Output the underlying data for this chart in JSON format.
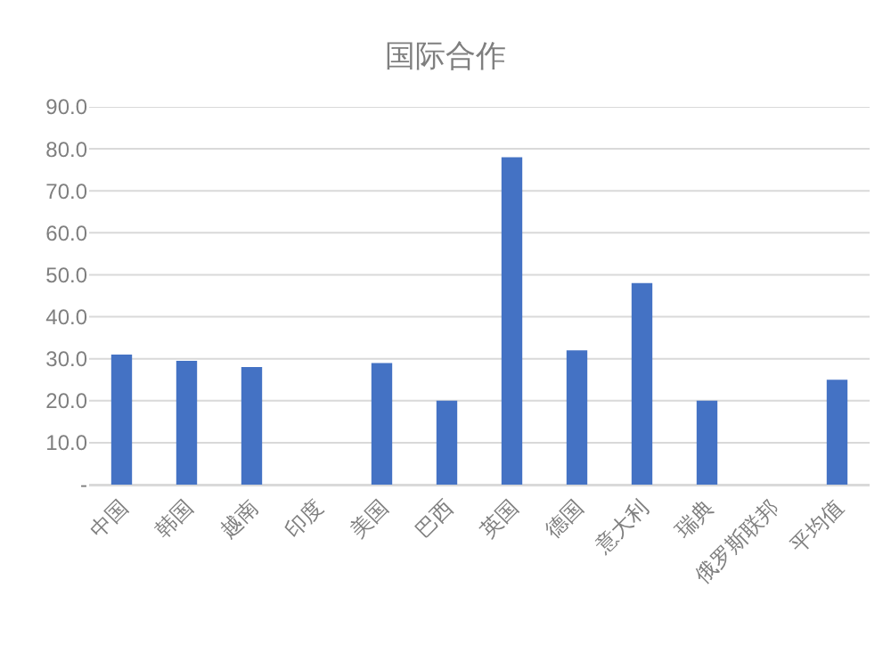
{
  "chart_data": {
    "type": "bar",
    "title": "国际合作",
    "categories": [
      "中国",
      "韩国",
      "越南",
      "印度",
      "美国",
      "巴西",
      "英国",
      "德国",
      "意大利",
      "瑞典",
      "俄罗斯联邦",
      "平均值"
    ],
    "values": [
      31,
      29.5,
      28,
      0,
      29,
      20,
      78,
      32,
      48,
      20,
      0,
      25
    ],
    "color": "#4472c4",
    "ylim": [
      0,
      90
    ],
    "yticks": [
      {
        "value": 0,
        "label": "-"
      },
      {
        "value": 10,
        "label": "10.0"
      },
      {
        "value": 20,
        "label": "20.0"
      },
      {
        "value": 30,
        "label": "30.0"
      },
      {
        "value": 40,
        "label": "40.0"
      },
      {
        "value": 50,
        "label": "50.0"
      },
      {
        "value": 60,
        "label": "60.0"
      },
      {
        "value": 70,
        "label": "70.0"
      },
      {
        "value": 80,
        "label": "80.0"
      },
      {
        "value": 90,
        "label": "90.0"
      }
    ],
    "grid": "y"
  }
}
